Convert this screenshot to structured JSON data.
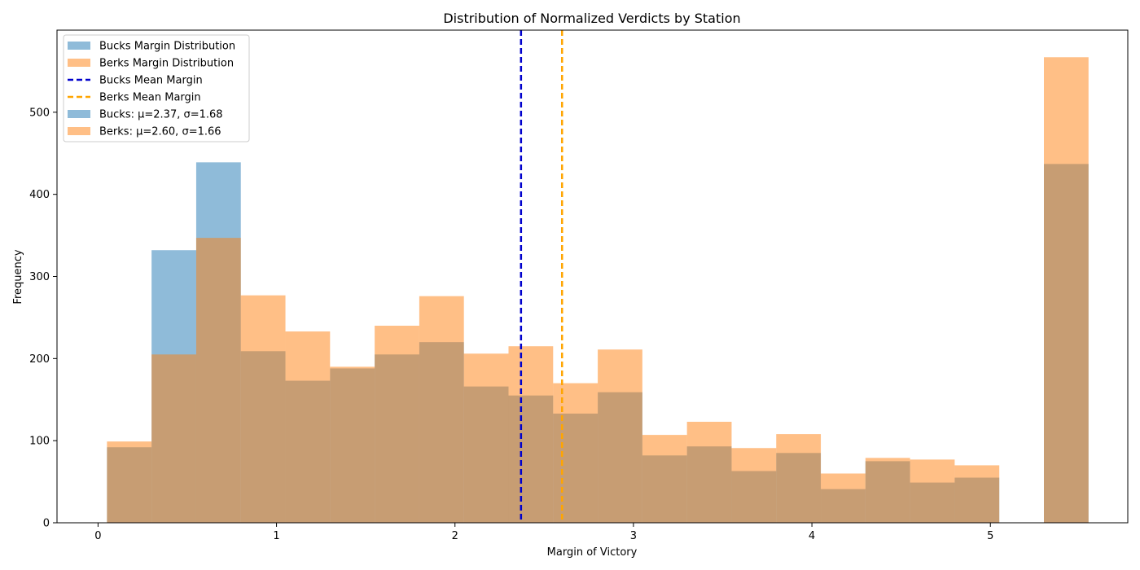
{
  "chart_data": {
    "type": "bar",
    "title": "Distribution of Normalized Verdicts by Station",
    "xlabel": "Margin of Victory",
    "ylabel": "Frequency",
    "xlim": [
      -0.23,
      5.77
    ],
    "ylim": [
      0,
      600
    ],
    "xticks": [
      0,
      1,
      2,
      3,
      4,
      5
    ],
    "yticks": [
      0,
      100,
      200,
      300,
      400,
      500
    ],
    "legend_position": "top-left",
    "grid": false,
    "bin_edges": [
      0.05,
      0.3,
      0.55,
      0.8,
      1.05,
      1.3,
      1.55,
      1.8,
      2.05,
      2.3,
      2.55,
      2.8,
      3.05,
      3.3,
      3.55,
      3.8,
      4.05,
      4.3,
      4.55,
      4.8,
      5.05,
      5.3,
      5.55
    ],
    "series": [
      {
        "name": "Bucks Margin Distribution",
        "color": "#1f77b4",
        "alpha": 0.5,
        "values": [
          92,
          332,
          439,
          209,
          173,
          188,
          205,
          220,
          166,
          155,
          133,
          159,
          82,
          93,
          63,
          85,
          41,
          75,
          49,
          55,
          0,
          437
        ]
      },
      {
        "name": "Berks Margin Distribution",
        "color": "#ff7f0e",
        "alpha": 0.5,
        "values": [
          99,
          205,
          347,
          277,
          233,
          190,
          240,
          276,
          206,
          215,
          170,
          211,
          107,
          123,
          91,
          108,
          60,
          79,
          77,
          70,
          0,
          567
        ]
      }
    ],
    "reference_lines": [
      {
        "name": "Bucks Mean Margin",
        "x": 2.37,
        "color": "#0000cc",
        "style": "dashed"
      },
      {
        "name": "Berks Mean Margin",
        "x": 2.6,
        "color": "#ffa500",
        "style": "dashed"
      }
    ],
    "legend": [
      {
        "label": "Bucks Margin Distribution",
        "kind": "patch",
        "color": "#1f77b4"
      },
      {
        "label": "Berks Margin Distribution",
        "kind": "patch",
        "color": "#ff7f0e"
      },
      {
        "label": "Bucks Mean Margin",
        "kind": "dash",
        "color": "#0000cc"
      },
      {
        "label": "Berks Mean Margin",
        "kind": "dash",
        "color": "#ffa500"
      },
      {
        "label": "Bucks: μ=2.37, σ=1.68",
        "kind": "patch",
        "color": "#1f77b4"
      },
      {
        "label": "Berks: μ=2.60, σ=1.66",
        "kind": "patch",
        "color": "#ff7f0e"
      }
    ]
  }
}
